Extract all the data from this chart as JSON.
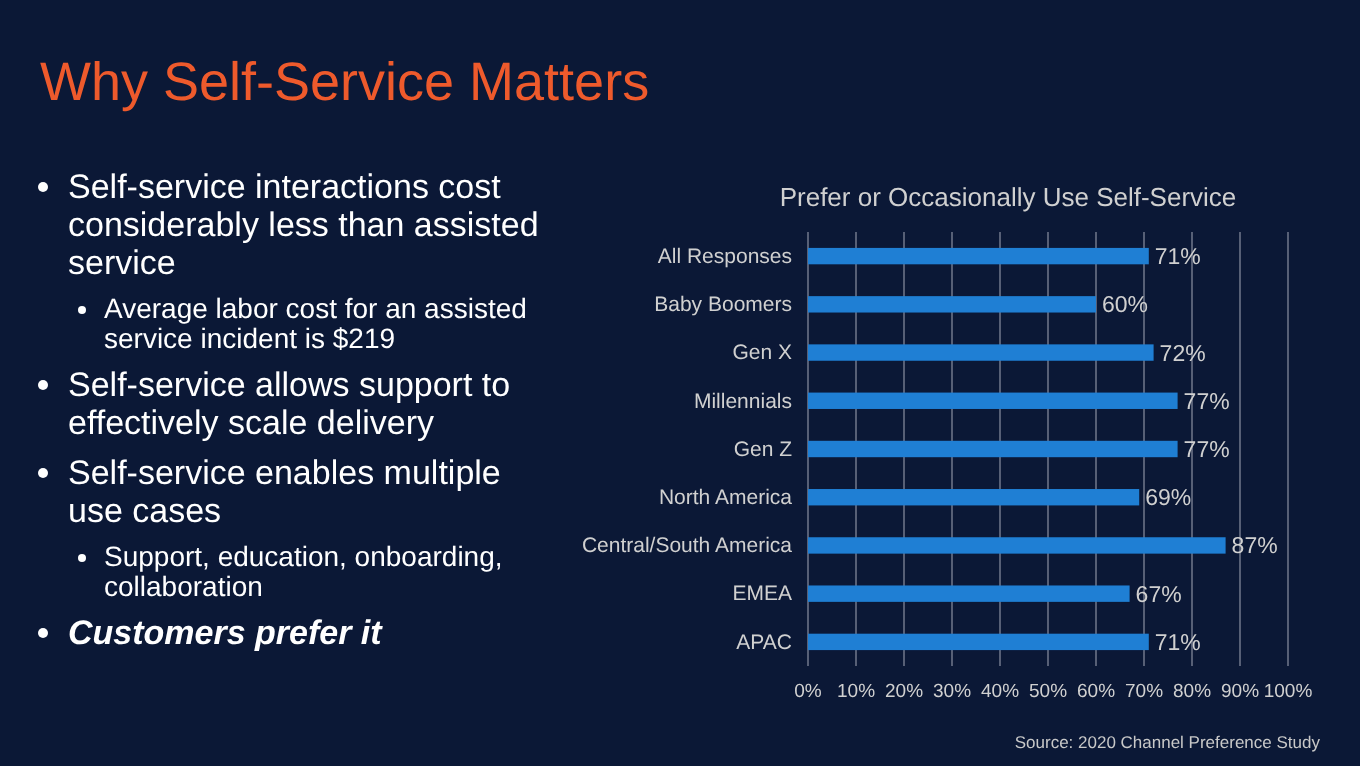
{
  "chart_data": {
    "type": "bar",
    "orientation": "horizontal",
    "title": "Why Self-Service Matters",
    "subtitle": "Prefer or Occasionally Use Self-Service",
    "categories": [
      "All Responses",
      "Baby Boomers",
      "Gen X",
      "Millennials",
      "Gen Z",
      "North America",
      "Central/South America",
      "EMEA",
      "APAC"
    ],
    "values": [
      71,
      60,
      72,
      77,
      77,
      69,
      87,
      67,
      71
    ],
    "value_labels": [
      "71%",
      "60%",
      "72%",
      "77%",
      "77%",
      "69%",
      "87%",
      "67%",
      "71%"
    ],
    "color": "#1f7fd4",
    "xlim": [
      0,
      100
    ],
    "xticks": [
      {
        "value": 0,
        "label": "0%"
      },
      {
        "value": 10,
        "label": "10%"
      },
      {
        "value": 20,
        "label": "20%"
      },
      {
        "value": 30,
        "label": "30%"
      },
      {
        "value": 40,
        "label": "40%"
      },
      {
        "value": 50,
        "label": "50%"
      },
      {
        "value": 60,
        "label": "60%"
      },
      {
        "value": 70,
        "label": "70%"
      },
      {
        "value": 80,
        "label": "80%"
      },
      {
        "value": 90,
        "label": "90%"
      },
      {
        "value": 100,
        "label": "100%"
      }
    ],
    "grid": "x",
    "annotations": [
      "Self-service interactions cost considerably less than assisted service",
      "Average labor cost for an assisted service incident is $219",
      "Self-service allows support to effectively scale delivery",
      "Self-service enables multiple use cases",
      "Support, education, onboarding, collaboration",
      "Customers prefer it",
      "Source: 2020 Channel Preference Study"
    ]
  }
}
